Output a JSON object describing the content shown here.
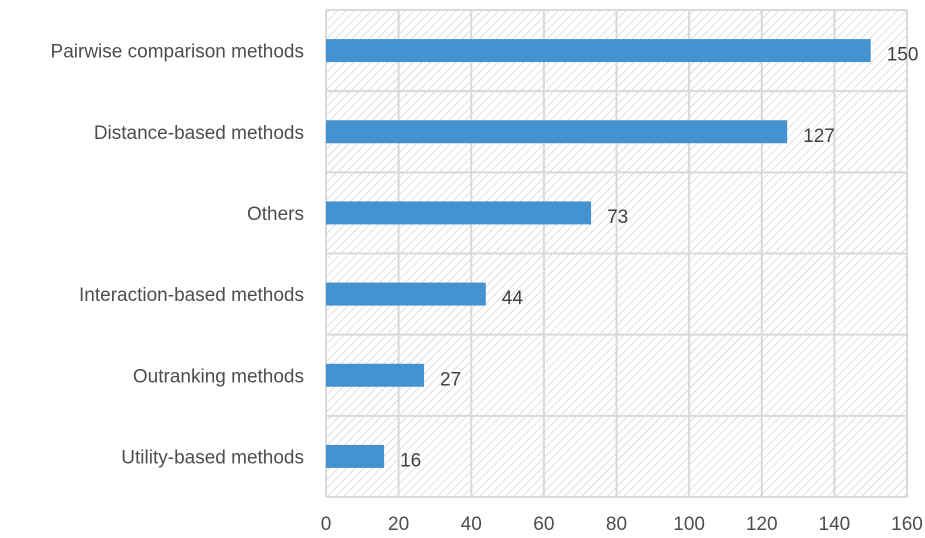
{
  "chart_data": {
    "type": "bar",
    "orientation": "horizontal",
    "categories": [
      "Pairwise comparison methods",
      "Distance-based methods",
      "Others",
      "Interaction-based methods",
      "Outranking methods",
      "Utility-based methods"
    ],
    "values": [
      150,
      127,
      73,
      44,
      27,
      16
    ],
    "data_labels": [
      "150",
      "127",
      "73",
      "44",
      "27",
      "16"
    ],
    "xlim": [
      0,
      160
    ],
    "x_ticks": [
      0,
      20,
      40,
      60,
      80,
      100,
      120,
      140,
      160
    ],
    "x_tick_labels": [
      "0",
      "20",
      "40",
      "60",
      "80",
      "100",
      "120",
      "140",
      "160"
    ],
    "grid": true,
    "bar_color": "#4492d0",
    "grid_color": "#d9d9d9",
    "plot_pattern": "diagonal-hatch",
    "title": "",
    "xlabel": "",
    "ylabel": ""
  }
}
